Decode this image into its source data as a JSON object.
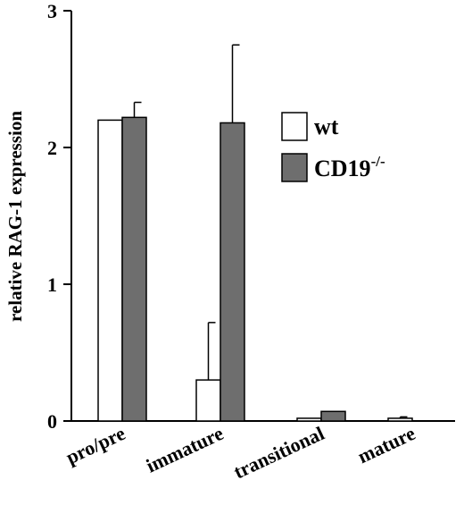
{
  "chart_data": {
    "type": "bar",
    "categories": [
      "pro/pre",
      "immature",
      "transitional",
      "mature"
    ],
    "series": [
      {
        "name": "wt",
        "values": [
          2.2,
          0.3,
          0.02,
          0.02
        ],
        "errors": [
          0,
          0.42,
          0,
          0.01
        ],
        "color": "#ffffff"
      },
      {
        "name": "CD19",
        "name_superscript": "-/-",
        "values": [
          2.22,
          2.18,
          0.07,
          0
        ],
        "errors": [
          0.11,
          0.57,
          0,
          0
        ],
        "color": "#6e6e6e"
      }
    ],
    "ylabel": "relative RAG-1 expression",
    "ylim": [
      0,
      3
    ],
    "yticks": [
      "0",
      "1",
      "2",
      "3"
    ],
    "legend_position": "top-right",
    "grid": false
  }
}
